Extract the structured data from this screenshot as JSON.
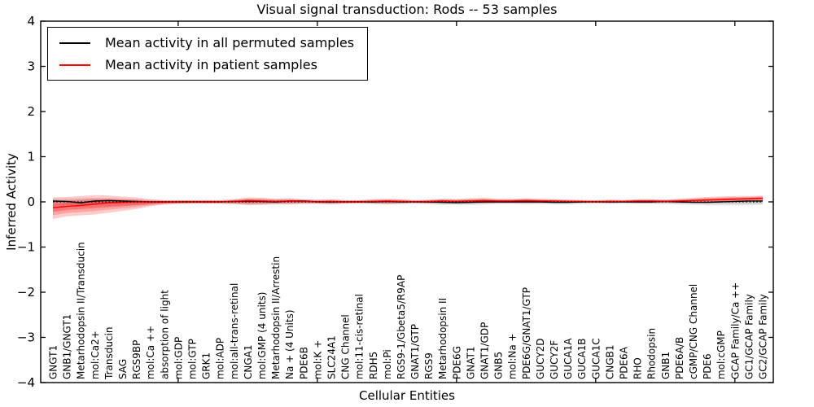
{
  "title": "Visual signal transduction: Rods -- 53 samples",
  "axes": {
    "ylabel": "Inferred Activity",
    "xlabel": "Cellular Entities",
    "yticks": [
      4,
      3,
      2,
      1,
      0,
      -1,
      -2,
      -3,
      -4
    ]
  },
  "legend": {
    "entries": [
      {
        "label": "Mean activity in all permuted samples",
        "color": "#000000"
      },
      {
        "label": "Mean activity in patient samples",
        "color": "#ff0000"
      }
    ]
  },
  "chart_data": {
    "type": "line",
    "title": "Visual signal transduction: Rods -- 53 samples",
    "xlabel": "Cellular Entities",
    "ylabel": "Inferred Activity",
    "ylim": [
      -4,
      4
    ],
    "grid": false,
    "legend_position": "upper left",
    "xtick_step": 10,
    "categories": [
      "GNGT1",
      "GNB1/GNGT1",
      "Metarhodopsin II/Transducin",
      "mol:Ca2+",
      "Transducin",
      "SAG",
      "RGS9BP",
      "mol:Ca ++",
      "absorption of light",
      "mol:GDP",
      "mol:GTP",
      "GRK1",
      "mol:ADP",
      "mol:all-trans-retinal",
      "CNGA1",
      "mol:GMP (4 units)",
      "Metarhodopsin II/Arrestin",
      "Na + (4 Units)",
      "PDE6B",
      "mol:K +",
      "SLC24A1",
      "CNG Channel",
      "mol:11-cis-retinal",
      "RDH5",
      "mol:Pi",
      "RGS9-1/Gbeta5/R9AP",
      "GNAT1/GTP",
      "RGS9",
      "Metarhodopsin II",
      "PDE6G",
      "GNAT1",
      "GNAT1/GDP",
      "GNB5",
      "mol:Na +",
      "PDE6G/GNAT1/GTP",
      "GUCY2D",
      "GUCY2F",
      "GUCA1A",
      "GUCA1B",
      "GUCA1C",
      "CNGB1",
      "PDE6A",
      "RHO",
      "Rhodopsin",
      "GNB1",
      "PDE6A/B",
      "cGMP/CNG Channel",
      "PDE6",
      "mol:cGMP",
      "GCAP Family/Ca ++",
      "GC1/GCAP Family",
      "GC2/GCAP Family"
    ],
    "series": [
      {
        "name": "Mean activity in all permuted samples",
        "color": "#000000",
        "values": [
          0.02,
          0.01,
          -0.02,
          0.02,
          0.03,
          0.02,
          0.01,
          0,
          0,
          0,
          0,
          0,
          0,
          0.01,
          0.02,
          0.01,
          0,
          0.02,
          0.02,
          0,
          0,
          0,
          0,
          0,
          0.01,
          0,
          0,
          0,
          -0.01,
          -0.02,
          -0.01,
          0,
          0,
          0,
          0,
          0,
          -0.01,
          -0.01,
          0,
          0,
          0,
          0,
          0,
          0,
          0.01,
          0,
          -0.01,
          -0.01,
          0,
          0.01,
          0.02,
          0.02
        ]
      },
      {
        "name": "Mean activity in patient samples",
        "color": "#ff0000",
        "values": [
          -0.13,
          -0.1,
          -0.08,
          -0.05,
          -0.02,
          -0.01,
          0,
          0,
          0,
          0,
          0,
          0,
          0,
          0.01,
          0.03,
          0.02,
          0.01,
          0.02,
          0.01,
          0,
          0.01,
          0,
          0,
          0.01,
          0.02,
          0.01,
          0,
          0.01,
          0.02,
          0.01,
          0.02,
          0.03,
          0.02,
          0.02,
          0.03,
          0.02,
          0.02,
          0.01,
          0.01,
          0,
          0.01,
          0.01,
          0.02,
          0.02,
          0.01,
          0.02,
          0.03,
          0.04,
          0.05,
          0.06,
          0.07,
          0.08
        ]
      }
    ],
    "bands": [
      {
        "name": "permuted-samples-spread",
        "color": "#999999",
        "opacity": 0.2,
        "upper": [
          0.08,
          0.08,
          0.09,
          0.09,
          0.08,
          0.07,
          0.06,
          0.05,
          0.04,
          0.04,
          0.04,
          0.04,
          0.04,
          0.05,
          0.07,
          0.07,
          0.06,
          0.06,
          0.05,
          0.05,
          0.05,
          0.04,
          0.04,
          0.05,
          0.05,
          0.05,
          0.04,
          0.05,
          0.06,
          0.06,
          0.06,
          0.06,
          0.05,
          0.05,
          0.06,
          0.05,
          0.05,
          0.05,
          0.04,
          0.04,
          0.05,
          0.04,
          0.05,
          0.05,
          0.05,
          0.06,
          0.06,
          0.06,
          0.06,
          0.06,
          0.06,
          0.06
        ],
        "lower": [
          -0.1,
          -0.1,
          -0.11,
          -0.1,
          -0.09,
          -0.08,
          -0.07,
          -0.06,
          -0.05,
          -0.04,
          -0.04,
          -0.04,
          -0.04,
          -0.05,
          -0.07,
          -0.07,
          -0.06,
          -0.06,
          -0.05,
          -0.05,
          -0.06,
          -0.04,
          -0.04,
          -0.05,
          -0.06,
          -0.05,
          -0.04,
          -0.05,
          -0.07,
          -0.07,
          -0.07,
          -0.06,
          -0.05,
          -0.05,
          -0.06,
          -0.05,
          -0.06,
          -0.06,
          -0.05,
          -0.04,
          -0.05,
          -0.04,
          -0.05,
          -0.05,
          -0.05,
          -0.06,
          -0.07,
          -0.08,
          -0.08,
          -0.08,
          -0.08,
          -0.07
        ]
      },
      {
        "name": "patient-samples-spread",
        "color": "#ff0000",
        "opacity": 0.2,
        "upper": [
          0.1,
          0.11,
          0.13,
          0.15,
          0.14,
          0.12,
          0.1,
          0.06,
          0.04,
          0.04,
          0.04,
          0.04,
          0.04,
          0.06,
          0.1,
          0.09,
          0.07,
          0.08,
          0.06,
          0.05,
          0.06,
          0.04,
          0.04,
          0.06,
          0.07,
          0.06,
          0.04,
          0.05,
          0.07,
          0.06,
          0.08,
          0.09,
          0.07,
          0.07,
          0.08,
          0.07,
          0.06,
          0.05,
          0.04,
          0.04,
          0.05,
          0.04,
          0.06,
          0.06,
          0.05,
          0.07,
          0.09,
          0.11,
          0.12,
          0.13,
          0.13,
          0.14
        ],
        "lower": [
          -0.38,
          -0.32,
          -0.3,
          -0.28,
          -0.24,
          -0.2,
          -0.16,
          -0.1,
          -0.06,
          -0.05,
          -0.04,
          -0.04,
          -0.04,
          -0.05,
          -0.07,
          -0.06,
          -0.05,
          -0.05,
          -0.04,
          -0.04,
          -0.05,
          -0.04,
          -0.03,
          -0.04,
          -0.05,
          -0.04,
          -0.03,
          -0.04,
          -0.04,
          -0.03,
          -0.04,
          -0.04,
          -0.03,
          -0.03,
          -0.03,
          -0.03,
          -0.03,
          -0.03,
          -0.02,
          -0.02,
          -0.03,
          -0.02,
          -0.03,
          -0.03,
          -0.02,
          -0.03,
          -0.03,
          -0.02,
          -0.01,
          0.0,
          0.01,
          0.02
        ]
      }
    ],
    "zero_line": {
      "y": 0,
      "style": "dotted",
      "color": "#000000"
    }
  }
}
